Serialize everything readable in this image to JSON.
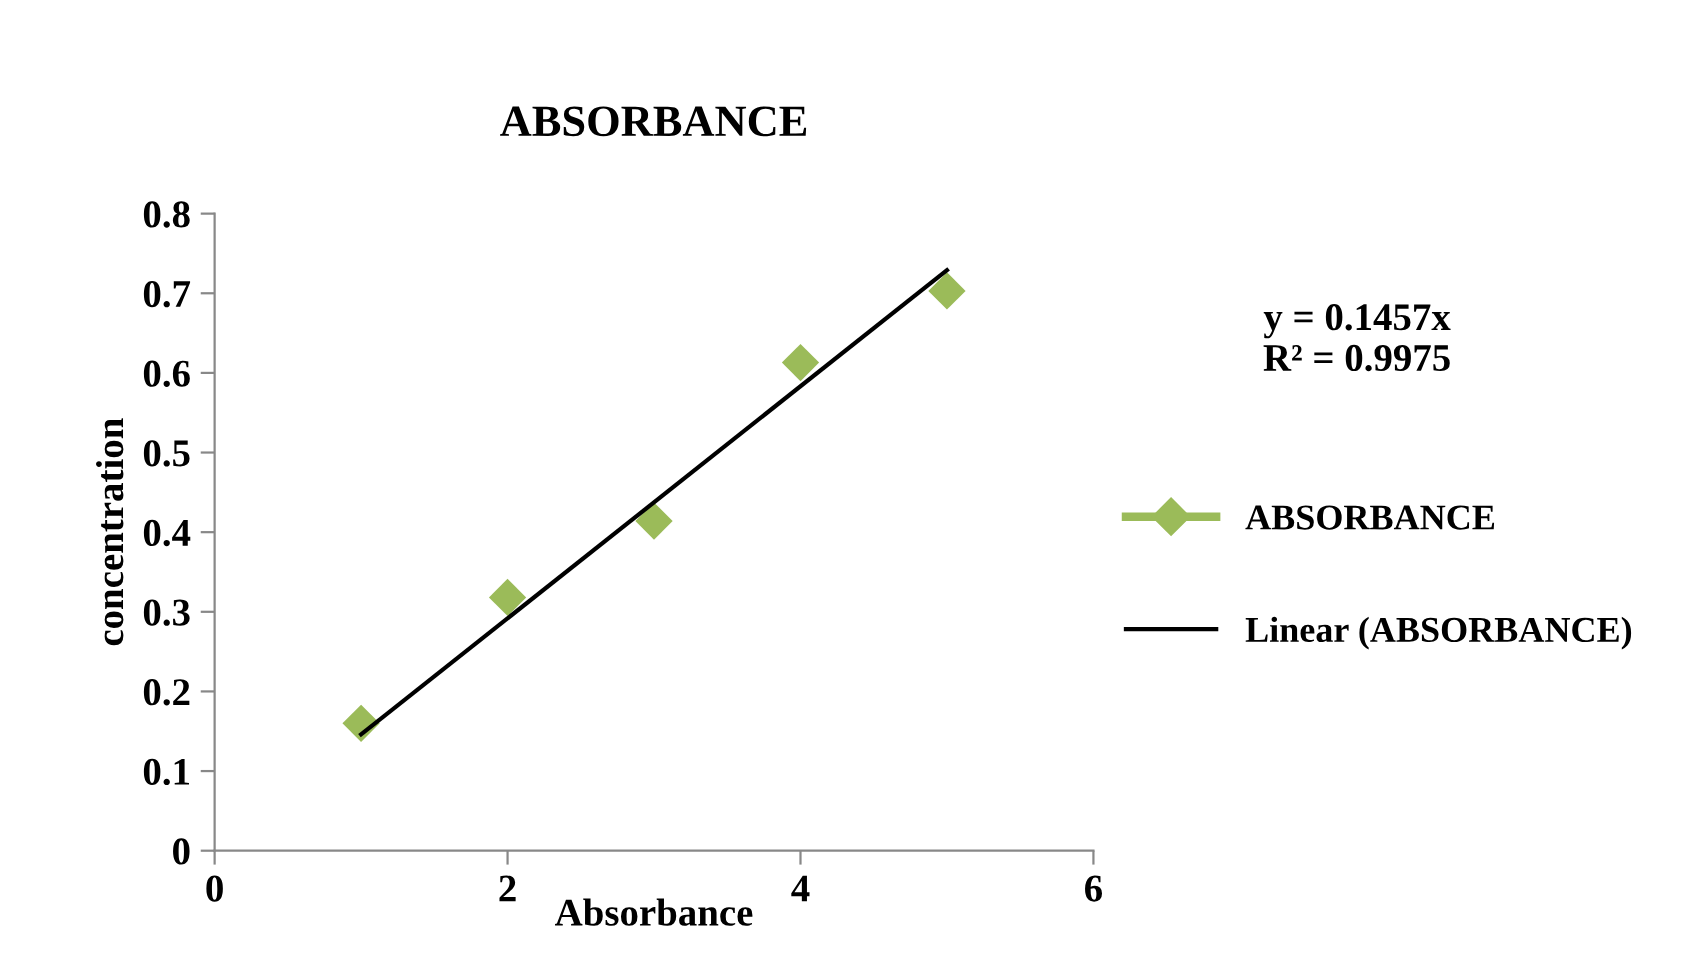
{
  "chart_data": {
    "type": "scatter",
    "title": "ABSORBANCE",
    "xlabel": "Absorbance",
    "ylabel": "concentration",
    "xlim": [
      0,
      6
    ],
    "xticks": [
      0,
      2,
      4,
      6
    ],
    "ylim": [
      0,
      0.8
    ],
    "yticks": [
      0,
      0.1,
      0.2,
      0.3,
      0.4,
      0.5,
      0.6,
      0.7,
      0.8
    ],
    "grid": false,
    "legend": "right",
    "marker": "diamond",
    "annotations": [
      "y = 0.1457x\nR² = 0.9975"
    ],
    "series": [
      {
        "name": "ABSORBANCE",
        "color": "#9bbb59",
        "x": [
          1,
          2,
          3,
          4,
          5
        ],
        "values": [
          0.16,
          0.318,
          0.414,
          0.613,
          0.703
        ]
      },
      {
        "name": "Linear (ABSORBANCE)",
        "type": "line",
        "color": "#000000",
        "marker": "none",
        "x": [
          1,
          5
        ],
        "values": [
          0.146,
          0.729
        ]
      }
    ]
  }
}
